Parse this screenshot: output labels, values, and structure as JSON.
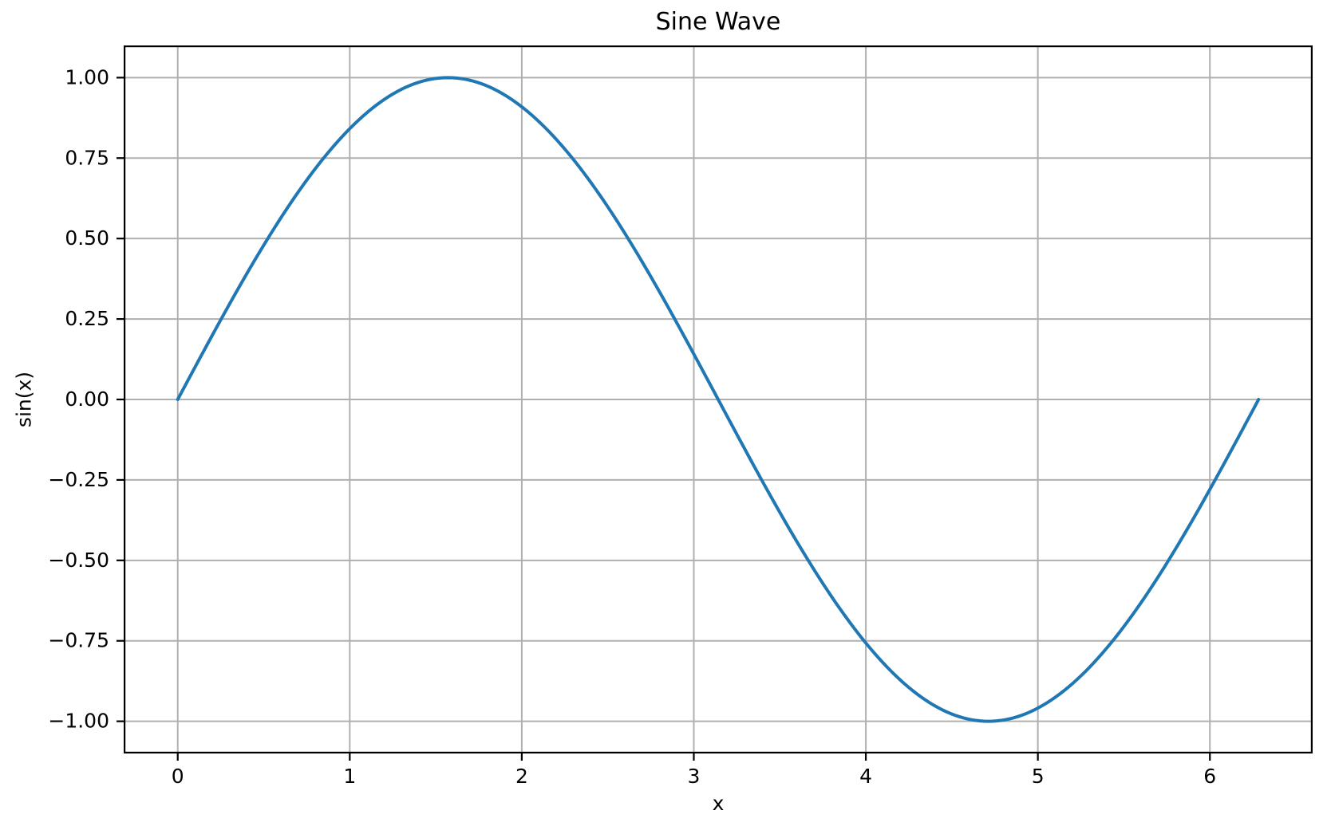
{
  "chart_data": {
    "type": "line",
    "title": "Sine Wave",
    "xlabel": "x",
    "ylabel": "sin(x)",
    "xlim": [
      -0.3142,
      6.5973
    ],
    "ylim": [
      -1.1,
      1.1
    ],
    "xticks": {
      "values": [
        0,
        1,
        2,
        3,
        4,
        5,
        6
      ],
      "labels": [
        "0",
        "1",
        "2",
        "3",
        "4",
        "5",
        "6"
      ]
    },
    "yticks": {
      "values": [
        1.0,
        0.75,
        0.5,
        0.25,
        0.0,
        -0.25,
        -0.5,
        -0.75,
        -1.0
      ],
      "labels": [
        "1.00",
        "0.75",
        "0.50",
        "0.25",
        "0.00",
        "−0.25",
        "−0.50",
        "−0.75",
        "−1.00"
      ]
    },
    "grid": true,
    "grid_color": "#b0b0b0",
    "background_color": "#ffffff",
    "spine_color": "#000000",
    "legend": "none",
    "series": [
      {
        "name": "sin(x)",
        "formula": "sin(x)",
        "x_range": [
          0,
          6.2832
        ],
        "num_points": 257,
        "line_color": "#1f77b4",
        "samples": {
          "x": [
            0,
            0.3927,
            0.7854,
            1.1781,
            1.5708,
            1.9635,
            2.3562,
            2.7489,
            3.1416,
            3.5343,
            3.927,
            4.3197,
            4.7124,
            5.1051,
            5.4978,
            5.8905,
            6.2832
          ],
          "y": [
            0,
            0.3827,
            0.7071,
            0.9239,
            1.0,
            0.9239,
            0.7071,
            0.3827,
            0,
            -0.3827,
            -0.7071,
            -0.9239,
            -1.0,
            -0.9239,
            -0.7071,
            -0.3827,
            0
          ]
        }
      }
    ]
  }
}
